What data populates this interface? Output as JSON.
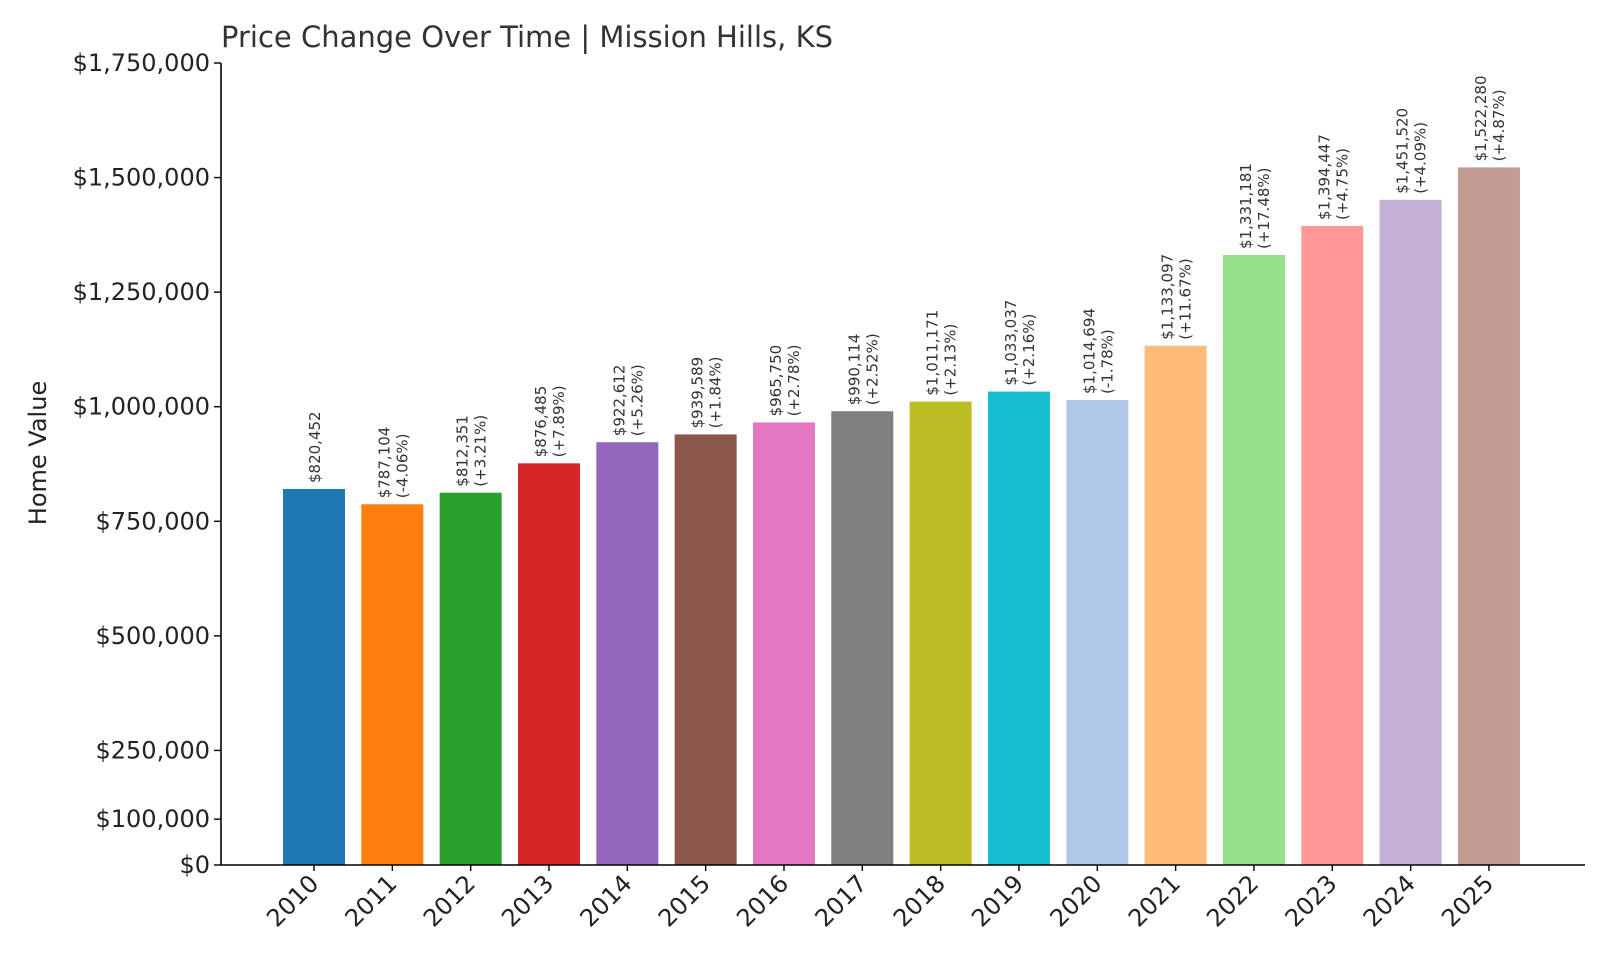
{
  "chart_data": {
    "type": "bar",
    "title": "Price Change Over Time | Mission Hills, KS",
    "xlabel": "",
    "ylabel": "Home Value",
    "ylim": [
      0,
      1750000
    ],
    "grid": false,
    "y_ticks": [
      {
        "value": 0,
        "label": "$0"
      },
      {
        "value": 100000,
        "label": "$100,000"
      },
      {
        "value": 250000,
        "label": "$250,000"
      },
      {
        "value": 500000,
        "label": "$500,000"
      },
      {
        "value": 750000,
        "label": "$750,000"
      },
      {
        "value": 1000000,
        "label": "$1,000,000"
      },
      {
        "value": 1250000,
        "label": "$1,250,000"
      },
      {
        "value": 1500000,
        "label": "$1,500,000"
      },
      {
        "value": 1750000,
        "label": "$1,750,000"
      }
    ],
    "categories": [
      "2010",
      "2011",
      "2012",
      "2013",
      "2014",
      "2015",
      "2016",
      "2017",
      "2018",
      "2019",
      "2020",
      "2021",
      "2022",
      "2023",
      "2024",
      "2025"
    ],
    "values": [
      820452,
      787104,
      812351,
      876485,
      922612,
      939589,
      965750,
      990114,
      1011171,
      1033037,
      1014694,
      1133097,
      1331181,
      1394447,
      1451520,
      1522280
    ],
    "value_labels": [
      "$820,452",
      "$787,104",
      "$812,351",
      "$876,485",
      "$922,612",
      "$939,589",
      "$965,750",
      "$990,114",
      "$1,011,171",
      "$1,033,037",
      "$1,014,694",
      "$1,133,097",
      "$1,331,181",
      "$1,394,447",
      "$1,451,520",
      "$1,522,280"
    ],
    "change_labels": [
      "",
      "(-4.06%)",
      "(+3.21%)",
      "(+7.89%)",
      "(+5.26%)",
      "(+1.84%)",
      "(+2.78%)",
      "(+2.52%)",
      "(+2.13%)",
      "(+2.16%)",
      "(-1.78%)",
      "(+11.67%)",
      "(+17.48%)",
      "(+4.75%)",
      "(+4.09%)",
      "(+4.87%)"
    ],
    "colors": [
      "#1f77b4",
      "#ff7f0e",
      "#2ca02c",
      "#d62728",
      "#9467bd",
      "#8c564b",
      "#e377c2",
      "#7f7f7f",
      "#bcbd22",
      "#17becf",
      "#aec7e8",
      "#ffbb78",
      "#98df8a",
      "#ff9896",
      "#c5b0d5",
      "#c49c94"
    ]
  }
}
